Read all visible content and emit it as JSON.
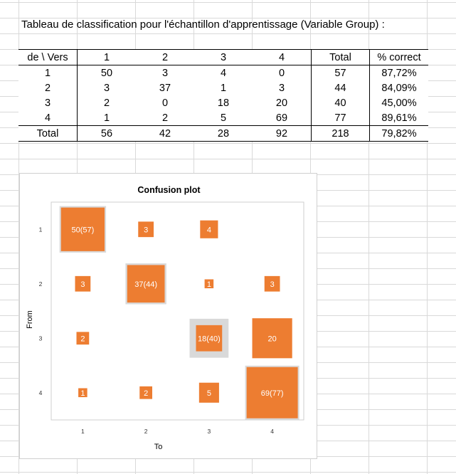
{
  "sheet": {
    "title": "Tableau de classification pour l'échantillon d'apprentissage (Variable Group) :"
  },
  "table": {
    "headers": [
      "de \\ Vers",
      "1",
      "2",
      "3",
      "4",
      "Total",
      "% correct"
    ],
    "rows": [
      [
        "1",
        "50",
        "3",
        "4",
        "0",
        "57",
        "87,72%"
      ],
      [
        "2",
        "3",
        "37",
        "1",
        "3",
        "44",
        "84,09%"
      ],
      [
        "3",
        "2",
        "0",
        "18",
        "20",
        "40",
        "45,00%"
      ],
      [
        "4",
        "1",
        "2",
        "5",
        "69",
        "77",
        "89,61%"
      ]
    ],
    "total_row": [
      "Total",
      "56",
      "42",
      "28",
      "92",
      "218",
      "79,82%"
    ]
  },
  "chart_data": {
    "type": "heatmap",
    "title": "Confusion plot",
    "xlabel": "To",
    "ylabel": "From",
    "x_ticks": [
      "1",
      "2",
      "3",
      "4"
    ],
    "y_ticks": [
      "1",
      "2",
      "3",
      "4"
    ],
    "matrix": [
      [
        50,
        3,
        4,
        0
      ],
      [
        3,
        37,
        1,
        3
      ],
      [
        2,
        0,
        18,
        20
      ],
      [
        1,
        2,
        5,
        69
      ]
    ],
    "row_totals": [
      57,
      44,
      40,
      77
    ],
    "cell_labels": [
      [
        "50(57)",
        "3",
        "4",
        ""
      ],
      [
        "3",
        "37(44)",
        "1",
        "3"
      ],
      [
        "2",
        "",
        "18(40)",
        "20"
      ],
      [
        "1",
        "2",
        "5",
        "69(77)"
      ]
    ],
    "grid": false,
    "legend": "none",
    "colors": {
      "cell_fill": "#ED7D31",
      "cell_label": "#ffffff",
      "diagonal_total_fill": "#D9D9D9"
    }
  }
}
